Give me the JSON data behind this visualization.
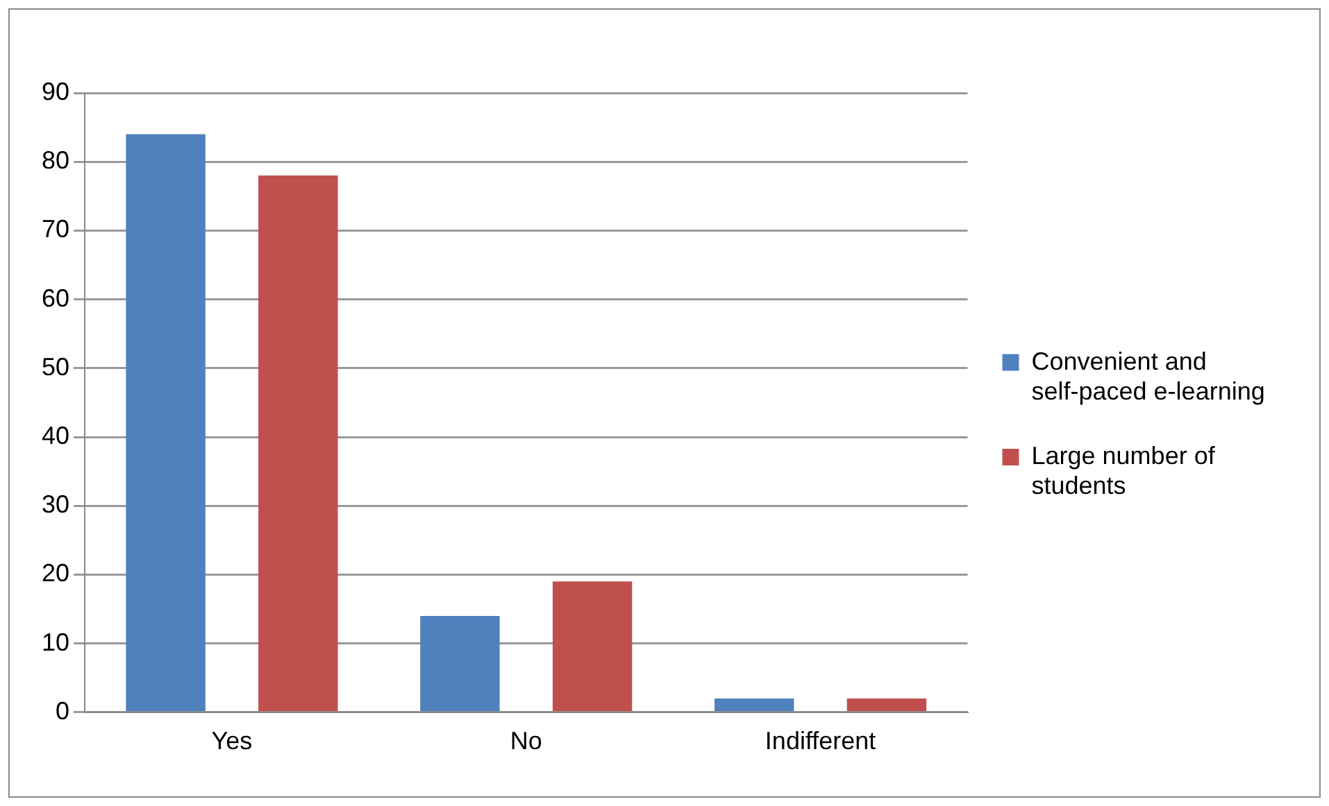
{
  "chart_data": {
    "type": "bar",
    "categories": [
      "Yes",
      "No",
      "Indifferent"
    ],
    "series": [
      {
        "name": "Convenient and self-paced e-learning",
        "color": "#4f81bd",
        "values": [
          84,
          14,
          2
        ]
      },
      {
        "name": "Large number of students",
        "color": "#c0504d",
        "values": [
          78,
          19,
          2
        ]
      }
    ],
    "ylim": [
      0,
      90
    ],
    "yticks": [
      0,
      10,
      20,
      30,
      40,
      50,
      60,
      70,
      80,
      90
    ],
    "grid": "y",
    "legend": "right"
  }
}
